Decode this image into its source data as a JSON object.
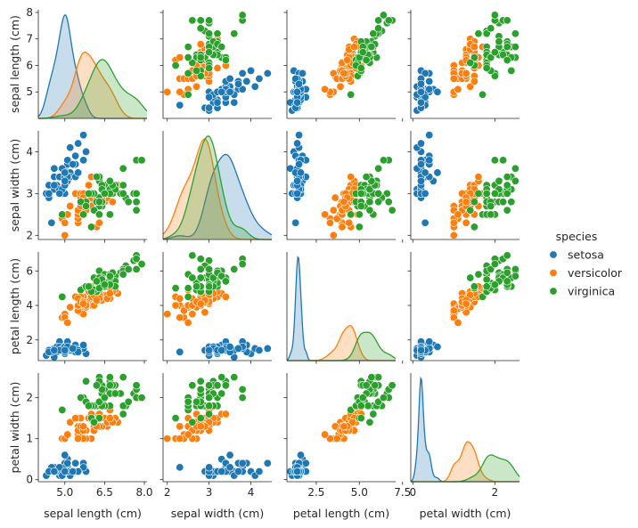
{
  "chart_data": {
    "type": "scatter",
    "subtype": "pairplot",
    "variables": [
      "sepal length (cm)",
      "sepal width (cm)",
      "petal length (cm)",
      "petal width (cm)"
    ],
    "diagonal": "kde",
    "legend": {
      "title": "species",
      "placement": "right",
      "entries": [
        "setosa",
        "versicolor",
        "virginica"
      ]
    },
    "colors": {
      "setosa": "#1f77b4",
      "versicolor": "#ff7f0e",
      "virginica": "#2ca02c"
    },
    "axes": {
      "sepal length (cm)": {
        "range": [
          4.0,
          8.1
        ],
        "ticks_x": [
          5.0,
          6.5,
          8.0
        ],
        "tick_labels_x": [
          "5.0",
          "6.5",
          "8.0"
        ],
        "ticks_y": [
          5,
          6,
          7,
          8
        ],
        "tick_labels_y": [
          "5",
          "6",
          "7",
          "8"
        ]
      },
      "sepal width (cm)": {
        "range": [
          1.9,
          4.5
        ],
        "ticks_x": [
          2,
          3,
          4
        ],
        "tick_labels_x": [
          "2",
          "3",
          "4"
        ],
        "ticks_y": [
          2,
          3,
          4
        ],
        "tick_labels_y": [
          "2",
          "3",
          "4"
        ]
      },
      "petal length (cm)": {
        "range": [
          0.8,
          7.1
        ],
        "ticks_x": [
          2.5,
          5.0,
          7.5
        ],
        "tick_labels_x": [
          "2.5",
          "5.0",
          "7.5"
        ],
        "ticks_y": [
          2,
          4,
          6
        ],
        "tick_labels_y": [
          "2",
          "4",
          "6"
        ]
      },
      "petal width (cm)": {
        "range": [
          -0.05,
          2.6
        ],
        "ticks_x": [
          0,
          2
        ],
        "tick_labels_x": [
          "0",
          "2"
        ],
        "ticks_y": [
          0,
          1,
          2
        ],
        "tick_labels_y": [
          "0",
          "1",
          "2"
        ]
      }
    },
    "series": [
      {
        "name": "setosa",
        "points": [
          [
            5.1,
            3.5,
            1.4,
            0.2
          ],
          [
            4.9,
            3.0,
            1.4,
            0.2
          ],
          [
            4.7,
            3.2,
            1.3,
            0.2
          ],
          [
            4.6,
            3.1,
            1.5,
            0.2
          ],
          [
            5.0,
            3.6,
            1.4,
            0.2
          ],
          [
            5.4,
            3.9,
            1.7,
            0.4
          ],
          [
            4.6,
            3.4,
            1.4,
            0.3
          ],
          [
            5.0,
            3.4,
            1.5,
            0.2
          ],
          [
            4.4,
            2.9,
            1.4,
            0.2
          ],
          [
            4.9,
            3.1,
            1.5,
            0.1
          ],
          [
            5.4,
            3.7,
            1.5,
            0.2
          ],
          [
            4.8,
            3.4,
            1.6,
            0.2
          ],
          [
            4.8,
            3.0,
            1.4,
            0.1
          ],
          [
            4.3,
            3.0,
            1.1,
            0.1
          ],
          [
            5.8,
            4.0,
            1.2,
            0.2
          ],
          [
            5.7,
            4.4,
            1.5,
            0.4
          ],
          [
            5.4,
            3.9,
            1.3,
            0.4
          ],
          [
            5.1,
            3.5,
            1.4,
            0.3
          ],
          [
            5.7,
            3.8,
            1.7,
            0.3
          ],
          [
            5.1,
            3.8,
            1.5,
            0.3
          ],
          [
            5.4,
            3.4,
            1.7,
            0.2
          ],
          [
            5.1,
            3.7,
            1.5,
            0.4
          ],
          [
            4.6,
            3.6,
            1.0,
            0.2
          ],
          [
            5.1,
            3.3,
            1.7,
            0.5
          ],
          [
            4.8,
            3.4,
            1.9,
            0.2
          ],
          [
            5.0,
            3.0,
            1.6,
            0.2
          ],
          [
            5.0,
            3.4,
            1.6,
            0.4
          ],
          [
            5.2,
            3.5,
            1.5,
            0.2
          ],
          [
            5.2,
            3.4,
            1.4,
            0.2
          ],
          [
            4.7,
            3.2,
            1.6,
            0.2
          ],
          [
            4.8,
            3.1,
            1.6,
            0.2
          ],
          [
            5.4,
            3.4,
            1.5,
            0.4
          ],
          [
            5.2,
            4.1,
            1.5,
            0.1
          ],
          [
            5.5,
            4.2,
            1.4,
            0.2
          ],
          [
            4.9,
            3.1,
            1.5,
            0.2
          ],
          [
            5.0,
            3.2,
            1.2,
            0.2
          ],
          [
            5.5,
            3.5,
            1.3,
            0.2
          ],
          [
            4.9,
            3.6,
            1.4,
            0.1
          ],
          [
            4.4,
            3.0,
            1.3,
            0.2
          ],
          [
            5.1,
            3.4,
            1.5,
            0.2
          ],
          [
            5.0,
            3.5,
            1.3,
            0.3
          ],
          [
            4.5,
            2.3,
            1.3,
            0.3
          ],
          [
            4.4,
            3.2,
            1.3,
            0.2
          ],
          [
            5.0,
            3.5,
            1.6,
            0.6
          ],
          [
            5.1,
            3.8,
            1.9,
            0.4
          ],
          [
            4.8,
            3.0,
            1.4,
            0.3
          ],
          [
            5.1,
            3.8,
            1.6,
            0.2
          ],
          [
            4.6,
            3.2,
            1.4,
            0.2
          ],
          [
            5.3,
            3.7,
            1.5,
            0.2
          ],
          [
            5.0,
            3.3,
            1.4,
            0.2
          ]
        ]
      },
      {
        "name": "versicolor",
        "points": [
          [
            7.0,
            3.2,
            4.7,
            1.4
          ],
          [
            6.4,
            3.2,
            4.5,
            1.5
          ],
          [
            6.9,
            3.1,
            4.9,
            1.5
          ],
          [
            5.5,
            2.3,
            4.0,
            1.3
          ],
          [
            6.5,
            2.8,
            4.6,
            1.5
          ],
          [
            5.7,
            2.8,
            4.5,
            1.3
          ],
          [
            6.3,
            3.3,
            4.7,
            1.6
          ],
          [
            4.9,
            2.4,
            3.3,
            1.0
          ],
          [
            6.6,
            2.9,
            4.6,
            1.3
          ],
          [
            5.2,
            2.7,
            3.9,
            1.4
          ],
          [
            5.0,
            2.0,
            3.5,
            1.0
          ],
          [
            5.9,
            3.0,
            4.2,
            1.5
          ],
          [
            6.0,
            2.2,
            4.0,
            1.0
          ],
          [
            6.1,
            2.9,
            4.7,
            1.4
          ],
          [
            5.6,
            2.9,
            3.6,
            1.3
          ],
          [
            6.7,
            3.1,
            4.4,
            1.4
          ],
          [
            5.6,
            3.0,
            4.5,
            1.5
          ],
          [
            5.8,
            2.7,
            4.1,
            1.0
          ],
          [
            6.2,
            2.2,
            4.5,
            1.5
          ],
          [
            5.6,
            2.5,
            3.9,
            1.1
          ],
          [
            5.9,
            3.2,
            4.8,
            1.8
          ],
          [
            6.1,
            2.8,
            4.0,
            1.3
          ],
          [
            6.3,
            2.5,
            4.9,
            1.5
          ],
          [
            6.1,
            2.8,
            4.7,
            1.2
          ],
          [
            6.4,
            2.9,
            4.3,
            1.3
          ],
          [
            6.6,
            3.0,
            4.4,
            1.4
          ],
          [
            6.8,
            2.8,
            4.8,
            1.4
          ],
          [
            6.7,
            3.0,
            5.0,
            1.7
          ],
          [
            6.0,
            2.9,
            4.5,
            1.5
          ],
          [
            5.7,
            2.6,
            3.5,
            1.0
          ],
          [
            5.5,
            2.4,
            3.8,
            1.1
          ],
          [
            5.5,
            2.4,
            3.7,
            1.0
          ],
          [
            5.8,
            2.7,
            3.9,
            1.2
          ],
          [
            6.0,
            2.7,
            5.1,
            1.6
          ],
          [
            5.4,
            3.0,
            4.5,
            1.5
          ],
          [
            6.0,
            3.4,
            4.5,
            1.6
          ],
          [
            6.7,
            3.1,
            4.7,
            1.5
          ],
          [
            6.3,
            2.3,
            4.4,
            1.3
          ],
          [
            5.6,
            3.0,
            4.1,
            1.3
          ],
          [
            5.5,
            2.5,
            4.0,
            1.3
          ],
          [
            5.5,
            2.6,
            4.4,
            1.2
          ],
          [
            6.1,
            3.0,
            4.6,
            1.4
          ],
          [
            5.8,
            2.6,
            4.0,
            1.2
          ],
          [
            5.0,
            2.3,
            3.3,
            1.0
          ],
          [
            5.6,
            2.7,
            4.2,
            1.3
          ],
          [
            5.7,
            3.0,
            4.2,
            1.2
          ],
          [
            5.7,
            2.9,
            4.2,
            1.3
          ],
          [
            6.2,
            2.9,
            4.3,
            1.3
          ],
          [
            5.1,
            2.5,
            3.0,
            1.1
          ],
          [
            5.7,
            2.8,
            4.1,
            1.3
          ]
        ]
      },
      {
        "name": "virginica",
        "points": [
          [
            6.3,
            3.3,
            6.0,
            2.5
          ],
          [
            5.8,
            2.7,
            5.1,
            1.9
          ],
          [
            7.1,
            3.0,
            5.9,
            2.1
          ],
          [
            6.3,
            2.9,
            5.6,
            1.8
          ],
          [
            6.5,
            3.0,
            5.8,
            2.2
          ],
          [
            7.6,
            3.0,
            6.6,
            2.1
          ],
          [
            4.9,
            2.5,
            4.5,
            1.7
          ],
          [
            7.3,
            2.9,
            6.3,
            1.8
          ],
          [
            6.7,
            2.5,
            5.8,
            1.8
          ],
          [
            7.2,
            3.6,
            6.1,
            2.5
          ],
          [
            6.5,
            3.2,
            5.1,
            2.0
          ],
          [
            6.4,
            2.7,
            5.3,
            1.9
          ],
          [
            6.8,
            3.0,
            5.5,
            2.1
          ],
          [
            5.7,
            2.5,
            5.0,
            2.0
          ],
          [
            5.8,
            2.8,
            5.1,
            2.4
          ],
          [
            6.4,
            3.2,
            5.3,
            2.3
          ],
          [
            6.5,
            3.0,
            5.5,
            1.8
          ],
          [
            7.7,
            3.8,
            6.7,
            2.2
          ],
          [
            7.7,
            2.6,
            6.9,
            2.3
          ],
          [
            6.0,
            2.2,
            5.0,
            1.5
          ],
          [
            6.9,
            3.2,
            5.7,
            2.3
          ],
          [
            5.6,
            2.8,
            4.9,
            2.0
          ],
          [
            7.7,
            2.8,
            6.7,
            2.0
          ],
          [
            6.3,
            2.7,
            4.9,
            1.8
          ],
          [
            6.7,
            3.3,
            5.7,
            2.1
          ],
          [
            7.2,
            3.2,
            6.0,
            1.8
          ],
          [
            6.2,
            2.8,
            4.8,
            1.8
          ],
          [
            6.1,
            3.0,
            4.9,
            1.8
          ],
          [
            6.4,
            2.8,
            5.6,
            2.1
          ],
          [
            7.2,
            3.0,
            5.8,
            1.6
          ],
          [
            7.4,
            2.8,
            6.1,
            1.9
          ],
          [
            7.9,
            3.8,
            6.4,
            2.0
          ],
          [
            6.4,
            2.8,
            5.6,
            2.2
          ],
          [
            6.3,
            2.8,
            5.1,
            1.5
          ],
          [
            6.1,
            2.6,
            5.6,
            1.4
          ],
          [
            7.7,
            3.0,
            6.1,
            2.3
          ],
          [
            6.3,
            3.4,
            5.6,
            2.4
          ],
          [
            6.4,
            3.1,
            5.5,
            1.8
          ],
          [
            6.0,
            3.0,
            4.8,
            1.8
          ],
          [
            6.9,
            3.1,
            5.4,
            2.1
          ],
          [
            6.7,
            3.1,
            5.6,
            2.4
          ],
          [
            6.9,
            3.1,
            5.1,
            2.3
          ],
          [
            5.8,
            2.7,
            5.1,
            1.9
          ],
          [
            6.8,
            3.2,
            5.9,
            2.3
          ],
          [
            6.7,
            3.3,
            5.7,
            2.5
          ],
          [
            6.7,
            3.0,
            5.2,
            2.3
          ],
          [
            6.3,
            2.5,
            5.0,
            1.9
          ],
          [
            6.5,
            3.0,
            5.2,
            2.0
          ],
          [
            6.2,
            3.4,
            5.4,
            2.3
          ],
          [
            5.9,
            3.0,
            5.1,
            1.8
          ]
        ]
      }
    ]
  }
}
